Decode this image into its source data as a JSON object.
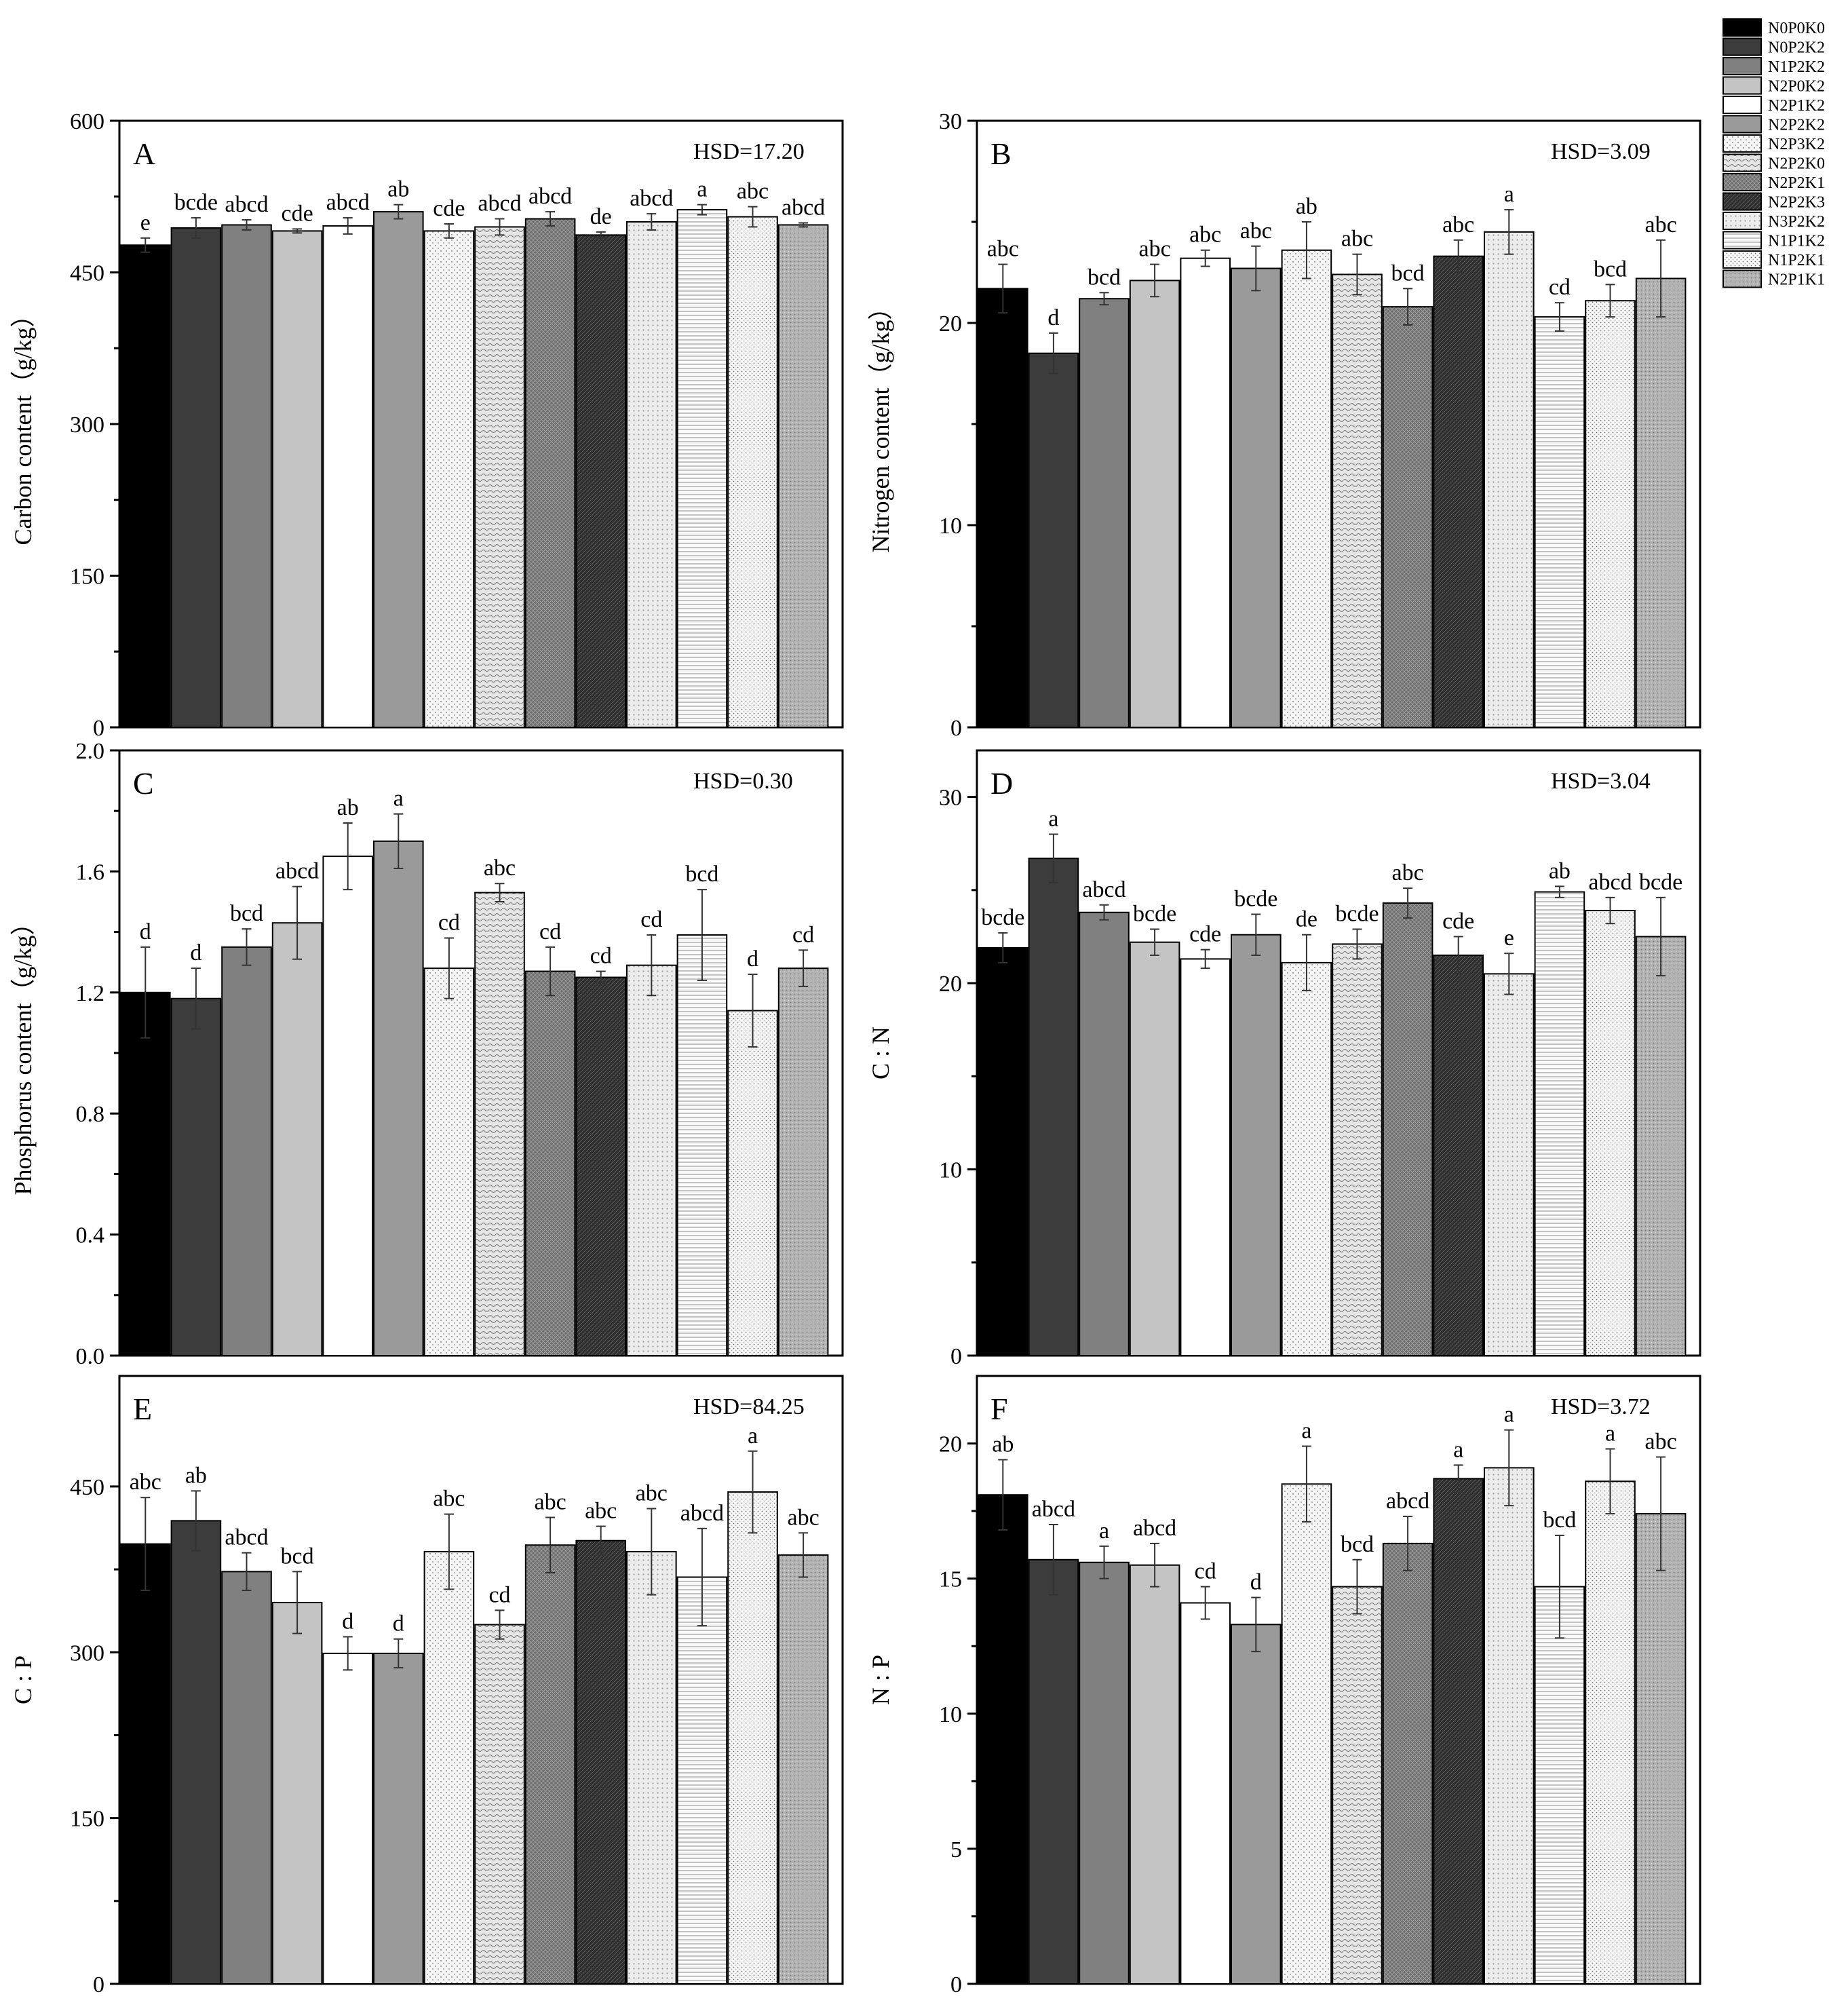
{
  "colors": {
    "N0P0K0": "#000000",
    "N0P2K2": "#3c3c3c",
    "N1P2K2": "#808080",
    "N2P0K2": "#c4c4c4",
    "N2P1K2": "#ffffff",
    "N2P2K2": "#9a9a9a",
    "N2P3K2": "pattern-dots-fine",
    "N2P2K0": "pattern-waves",
    "N2P2K1": "pattern-crosshatch-gray",
    "N2P2K3": "pattern-dark-hatch",
    "N3P2K2": "pattern-light-dots",
    "N1P1K2": "pattern-horizontal-lines",
    "N1P2K1": "pattern-stipple",
    "N2P1K1": "pattern-gray-grain"
  },
  "chart_data": [
    {
      "type": "bar",
      "panel": "A",
      "title": "",
      "annotation": "HSD=17.20",
      "xlabel": "",
      "ylabel": "Carbon content（g/kg）",
      "ylim": [
        0,
        600
      ],
      "yticks": [
        "0",
        "150",
        "300",
        "450",
        "600"
      ],
      "categories": [
        "N0P0K0",
        "N0P2K2",
        "N1P2K2",
        "N2P0K2",
        "N2P1K2",
        "N2P2K2",
        "N2P3K2",
        "N2P2K0",
        "N2P2K1",
        "N2P2K3",
        "N3P2K2",
        "N1P1K2",
        "N1P2K1",
        "N2P1K1"
      ],
      "values": [
        477,
        494,
        497,
        491,
        496,
        510,
        491,
        495,
        503,
        487,
        500,
        512,
        505,
        497
      ],
      "errors": [
        7,
        10,
        5,
        2,
        8,
        7,
        7,
        8,
        7,
        3,
        8,
        5,
        10,
        2
      ],
      "labels": [
        "e",
        "bcde",
        "abcd",
        "cde",
        "abcd",
        "ab",
        "cde",
        "abcd",
        "abcd",
        "de",
        "abcd",
        "a",
        "abc",
        "abcd"
      ]
    },
    {
      "type": "bar",
      "panel": "B",
      "title": "",
      "annotation": "HSD=3.09",
      "xlabel": "",
      "ylabel": "Nitrogen content（g/kg）",
      "ylim": [
        0,
        30
      ],
      "yticks": [
        "0",
        "10",
        "20",
        "30"
      ],
      "categories": [
        "N0P0K0",
        "N0P2K2",
        "N1P2K2",
        "N2P0K2",
        "N2P1K2",
        "N2P2K2",
        "N2P3K2",
        "N2P2K0",
        "N2P2K1",
        "N2P2K3",
        "N3P2K2",
        "N1P1K2",
        "N1P2K1",
        "N2P1K1"
      ],
      "values": [
        21.7,
        18.5,
        21.2,
        22.1,
        23.2,
        22.7,
        23.6,
        22.4,
        20.8,
        23.3,
        24.5,
        20.3,
        21.1,
        22.2
      ],
      "errors": [
        1.2,
        1.0,
        0.3,
        0.8,
        0.4,
        1.1,
        1.4,
        1.0,
        0.9,
        0.8,
        1.1,
        0.7,
        0.8,
        1.9
      ],
      "labels": [
        "abc",
        "d",
        "bcd",
        "abc",
        "abc",
        "abc",
        "ab",
        "abc",
        "bcd",
        "abc",
        "a",
        "cd",
        "bcd",
        "abc"
      ]
    },
    {
      "type": "bar",
      "panel": "C",
      "title": "",
      "annotation": "HSD=0.30",
      "xlabel": "",
      "ylabel": "Phosphorus content（g/kg）",
      "ylim": [
        0,
        2.0
      ],
      "yticks": [
        "0.0",
        "0.4",
        "0.8",
        "1.2",
        "1.6",
        "2.0"
      ],
      "categories": [
        "N0P0K0",
        "N0P2K2",
        "N1P2K2",
        "N2P0K2",
        "N2P1K2",
        "N2P2K2",
        "N2P3K2",
        "N2P2K0",
        "N2P2K1",
        "N2P2K3",
        "N3P2K2",
        "N1P1K2",
        "N1P2K1",
        "N2P1K1"
      ],
      "values": [
        1.2,
        1.18,
        1.35,
        1.43,
        1.65,
        1.7,
        1.28,
        1.53,
        1.27,
        1.25,
        1.29,
        1.39,
        1.14,
        1.28
      ],
      "errors": [
        0.15,
        0.1,
        0.06,
        0.12,
        0.11,
        0.09,
        0.1,
        0.03,
        0.08,
        0.02,
        0.1,
        0.15,
        0.12,
        0.06
      ],
      "labels": [
        "d",
        "d",
        "bcd",
        "abcd",
        "ab",
        "a",
        "cd",
        "abc",
        "cd",
        "cd",
        "cd",
        "bcd",
        "d",
        "cd"
      ]
    },
    {
      "type": "bar",
      "panel": "D",
      "title": "",
      "annotation": "HSD=3.04",
      "xlabel": "",
      "ylabel": "C : N",
      "ylim": [
        0,
        32.5
      ],
      "yticks": [
        "0",
        "10",
        "20",
        "30"
      ],
      "tick_values": [
        0,
        10,
        20,
        30
      ],
      "categories": [
        "N0P0K0",
        "N0P2K2",
        "N1P2K2",
        "N2P0K2",
        "N2P1K2",
        "N2P2K2",
        "N2P3K2",
        "N2P2K0",
        "N2P2K1",
        "N2P2K3",
        "N3P2K2",
        "N1P1K2",
        "N1P2K1",
        "N2P1K1"
      ],
      "values": [
        21.9,
        26.7,
        23.8,
        22.2,
        21.3,
        22.6,
        21.1,
        22.1,
        24.3,
        21.5,
        20.5,
        24.9,
        23.9,
        22.5
      ],
      "errors": [
        0.8,
        1.3,
        0.4,
        0.7,
        0.5,
        1.1,
        1.5,
        0.8,
        0.8,
        1.0,
        1.1,
        0.3,
        0.7,
        2.1
      ],
      "labels": [
        "bcde",
        "a",
        "abcd",
        "bcde",
        "cde",
        "bcde",
        "de",
        "bcde",
        "abc",
        "cde",
        "e",
        "ab",
        "abcd",
        "bcde"
      ]
    },
    {
      "type": "bar",
      "panel": "E",
      "title": "",
      "annotation": "HSD=84.25",
      "xlabel": "",
      "ylabel": "C : P",
      "ylim": [
        0,
        550
      ],
      "yticks": [
        "0",
        "150",
        "300",
        "450"
      ],
      "tick_values": [
        0,
        150,
        300,
        450
      ],
      "categories": [
        "N0P0K0",
        "N0P2K2",
        "N1P2K2",
        "N2P0K2",
        "N2P1K2",
        "N2P2K2",
        "N2P3K2",
        "N2P2K0",
        "N2P2K1",
        "N2P2K3",
        "N3P2K2",
        "N1P1K2",
        "N1P2K1",
        "N2P1K1"
      ],
      "values": [
        398,
        419,
        373,
        345,
        299,
        299,
        391,
        325,
        397,
        401,
        391,
        368,
        445,
        388
      ],
      "errors": [
        42,
        27,
        17,
        28,
        15,
        13,
        34,
        13,
        25,
        13,
        39,
        44,
        37,
        20
      ],
      "labels": [
        "abc",
        "ab",
        "abcd",
        "bcd",
        "d",
        "d",
        "abc",
        "cd",
        "abc",
        "abc",
        "abc",
        "abcd",
        "a",
        "abc"
      ]
    },
    {
      "type": "bar",
      "panel": "F",
      "title": "",
      "annotation": "HSD=3.72",
      "xlabel": "",
      "ylabel": "N : P",
      "ylim": [
        0,
        22.5
      ],
      "yticks": [
        "0",
        "5",
        "10",
        "15",
        "20"
      ],
      "tick_values": [
        0,
        5,
        10,
        15,
        20
      ],
      "categories": [
        "N0P0K0",
        "N0P2K2",
        "N1P2K2",
        "N2P0K2",
        "N2P1K2",
        "N2P2K2",
        "N2P3K2",
        "N2P2K0",
        "N2P2K1",
        "N2P2K3",
        "N3P2K2",
        "N1P1K2",
        "N1P2K1",
        "N2P1K1"
      ],
      "values": [
        18.1,
        15.7,
        15.6,
        15.5,
        14.1,
        13.3,
        18.5,
        14.7,
        16.3,
        18.7,
        19.1,
        14.7,
        18.6,
        17.4
      ],
      "errors": [
        1.3,
        1.3,
        0.6,
        0.8,
        0.6,
        1.0,
        1.4,
        1.0,
        1.0,
        0.5,
        1.4,
        1.9,
        1.2,
        2.1
      ],
      "labels": [
        "ab",
        "abcd",
        "a",
        "abcd",
        "cd",
        "d",
        "a",
        "bcd",
        "abcd",
        "a",
        "a",
        "bcd",
        "a",
        "abc"
      ]
    }
  ],
  "legend": {
    "placement": "top-right",
    "items": [
      "N0P0K0",
      "N0P2K2",
      "N1P2K2",
      "N2P0K2",
      "N2P1K2",
      "N2P2K2",
      "N2P3K2",
      "N2P2K0",
      "N2P2K1",
      "N2P2K3",
      "N3P2K2",
      "N1P1K2",
      "N1P2K1",
      "N2P1K1"
    ]
  }
}
